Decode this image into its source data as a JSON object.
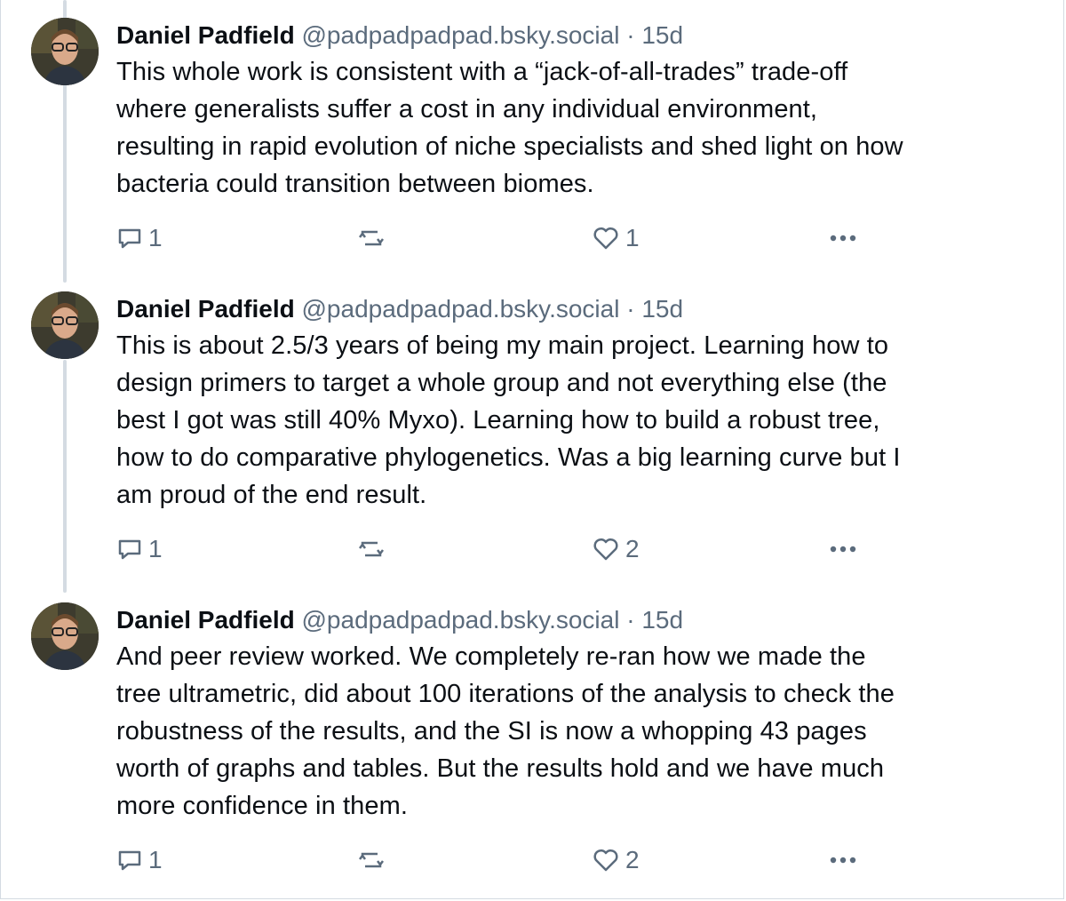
{
  "posts": [
    {
      "author": "Daniel Padfield",
      "handle": "@padpadpadpad.bsky.social",
      "separator": "·",
      "age": "15d",
      "text_lines": [
        "This whole work is consistent with a “jack-of-all-trades” trade-off",
        "where generalists suffer a cost in any individual environment,",
        "resulting in rapid evolution of niche specialists and shed light on how",
        "bacteria could transition between biomes."
      ],
      "reply_count": "1",
      "repost_count": "",
      "like_count": "1"
    },
    {
      "author": "Daniel Padfield",
      "handle": "@padpadpadpad.bsky.social",
      "separator": "·",
      "age": "15d",
      "text_lines": [
        "This is about 2.5/3 years of being my main project. Learning how to",
        "design primers to target a whole group and not everything else (the",
        "best I got was still 40% Myxo). Learning how to build a robust tree,",
        "how to do comparative phylogenetics. Was a big learning curve but I",
        "am proud of the end result."
      ],
      "reply_count": "1",
      "repost_count": "",
      "like_count": "2"
    },
    {
      "author": "Daniel Padfield",
      "handle": "@padpadpadpad.bsky.social",
      "separator": "·",
      "age": "15d",
      "text_lines": [
        "And peer review worked. We completely re-ran how we made the",
        "tree ultrametric, did about 100 iterations of the analysis to check the",
        "robustness of the results, and the SI is now a whopping 43 pages",
        "worth of graphs and tables. But the results hold and we have much",
        "more confidence in them."
      ],
      "reply_count": "1",
      "repost_count": "",
      "like_count": "2"
    }
  ],
  "icons": {
    "reply": "speech-bubble-icon",
    "repost": "repost-arrows-icon",
    "like": "heart-outline-icon",
    "more": "ellipsis-icon",
    "avatar": "avatar-photo"
  },
  "colors": {
    "text": "#0b0f14",
    "muted": "#5b6b7c",
    "thread_line": "#d4dbe2",
    "background": "#ffffff"
  }
}
